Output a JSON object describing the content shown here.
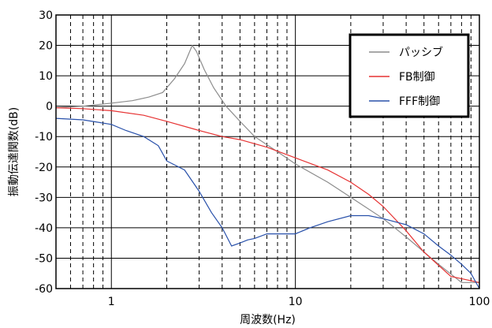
{
  "chart_data": {
    "type": "line",
    "xlabel": "周波数(Hz)",
    "ylabel": "振動伝達関数(dB)",
    "x_scale": "log",
    "xlim": [
      0.5,
      100
    ],
    "ylim": [
      -60,
      30
    ],
    "xticks": [
      {
        "value": 1,
        "label": "1"
      },
      {
        "value": 10,
        "label": "10"
      },
      {
        "value": 100,
        "label": "100"
      }
    ],
    "yticks": [
      30,
      20,
      10,
      0,
      -10,
      -20,
      -30,
      -40,
      -50,
      -60
    ],
    "grid": true,
    "legend_position": "top-right",
    "series": [
      {
        "name": "パッシブ",
        "color": "#8c8c8c",
        "x": [
          0.5,
          0.7,
          1.0,
          1.3,
          1.6,
          1.9,
          2.2,
          2.5,
          2.75,
          2.9,
          3.2,
          3.6,
          4.2,
          5.0,
          6.0,
          8.0,
          10,
          15,
          20,
          30,
          40,
          60,
          80,
          100
        ],
        "y": [
          -0.5,
          0,
          1,
          1.8,
          3,
          4.5,
          9,
          14,
          20,
          18,
          12,
          6,
          0,
          -5,
          -10,
          -15,
          -19,
          -25,
          -30,
          -37,
          -43,
          -52,
          -58,
          -58
        ]
      },
      {
        "name": "FB制御",
        "color": "#e63232",
        "x": [
          0.5,
          0.7,
          1.0,
          1.5,
          2.0,
          3.0,
          4.0,
          5.0,
          7.0,
          10,
          15,
          20,
          25,
          30,
          40,
          50,
          70,
          100
        ],
        "y": [
          -0.5,
          -0.8,
          -1.5,
          -3,
          -5,
          -8,
          -10,
          -11,
          -13.5,
          -17,
          -21,
          -25,
          -29,
          -33,
          -41,
          -48,
          -56,
          -58
        ]
      },
      {
        "name": "FFF制御",
        "color": "#2850aa",
        "x": [
          0.5,
          0.7,
          1.0,
          1.2,
          1.5,
          1.8,
          2.0,
          2.5,
          3.0,
          3.5,
          4.0,
          4.5,
          5.0,
          5.5,
          6.0,
          7.0,
          8.0,
          9.0,
          10,
          12,
          15,
          20,
          25,
          30,
          40,
          50,
          60,
          70,
          80,
          90,
          100
        ],
        "y": [
          -4,
          -4.5,
          -6,
          -8,
          -10,
          -13,
          -18,
          -21,
          -28,
          -35,
          -40,
          -46,
          -45,
          -44,
          -43.5,
          -42,
          -42,
          -42,
          -42,
          -40,
          -38,
          -36,
          -36,
          -37,
          -39,
          -42,
          -46,
          -49,
          -52,
          -55,
          -60
        ]
      }
    ]
  }
}
